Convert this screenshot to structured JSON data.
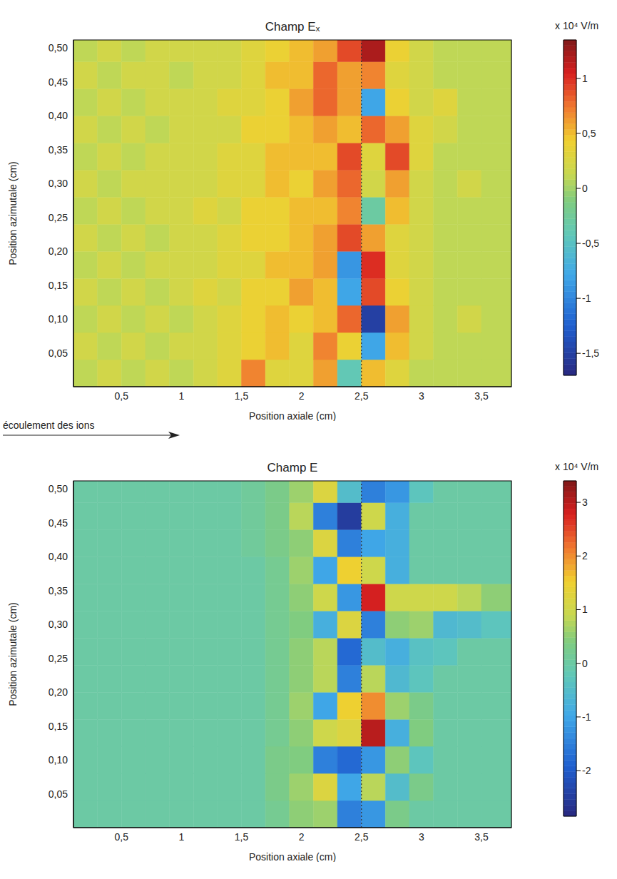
{
  "chart_data": [
    {
      "type": "heatmap",
      "title": "Champ Eₓ",
      "x_label": "Position axiale (cm)",
      "y_label": "Position azimutale (cm)",
      "xlim": [
        0.1,
        3.75
      ],
      "xticks": [
        {
          "value": 0.5,
          "label": "0,5"
        },
        1,
        {
          "value": 1.5,
          "label": "1,5"
        },
        2,
        {
          "value": 2.5,
          "label": "2,5"
        },
        3,
        {
          "value": 3.5,
          "label": "3,5"
        }
      ],
      "ylim": [
        0,
        0.512
      ],
      "yticks": [
        {
          "value": 0.05,
          "label": "0,05"
        },
        {
          "value": 0.1,
          "label": "0,10"
        },
        {
          "value": 0.15,
          "label": "0,15"
        },
        {
          "value": 0.2,
          "label": "0,20"
        },
        {
          "value": 0.25,
          "label": "0,25"
        },
        {
          "value": 0.3,
          "label": "0,30"
        },
        {
          "value": 0.35,
          "label": "0,35"
        },
        {
          "value": 0.4,
          "label": "0,40"
        },
        {
          "value": 0.45,
          "label": "0,45"
        },
        {
          "value": 0.5,
          "label": "0,50"
        }
      ],
      "x_edges": [
        0.1,
        0.3,
        0.5,
        0.7,
        0.9,
        1.1,
        1.3,
        1.5,
        1.7,
        1.9,
        2.1,
        2.3,
        2.5,
        2.7,
        2.9,
        3.1,
        3.3,
        3.5,
        3.75
      ],
      "y_edges": [
        0,
        0.04,
        0.08,
        0.12,
        0.16,
        0.2,
        0.24,
        0.28,
        0.32,
        0.36,
        0.4,
        0.44,
        0.48,
        0.512
      ],
      "cells": [
        [
          0.1,
          0.2,
          0.1,
          0.2,
          0.1,
          0.2,
          0.3,
          0.7,
          0.3,
          0.3,
          0.6,
          -0.4,
          0.5,
          0.3,
          0.1,
          0.1,
          0.1,
          0.1
        ],
        [
          0.2,
          0.1,
          0.2,
          0.1,
          0.2,
          0.2,
          0.3,
          0.4,
          0.5,
          0.3,
          0.7,
          0.4,
          -0.8,
          0.5,
          0.2,
          0.1,
          0.1,
          0.1
        ],
        [
          0.1,
          0.2,
          0.1,
          0.2,
          0.1,
          0.2,
          0.3,
          0.4,
          0.5,
          0.4,
          0.5,
          0.8,
          -1.5,
          0.6,
          0.2,
          0.1,
          0.2,
          0.1
        ],
        [
          0.2,
          0.1,
          0.2,
          0.1,
          0.2,
          0.3,
          0.2,
          0.4,
          0.4,
          0.6,
          0.5,
          -0.8,
          0.9,
          0.4,
          0.2,
          0.1,
          0.1,
          0.1
        ],
        [
          0.1,
          0.2,
          0.1,
          0.2,
          0.2,
          0.2,
          0.3,
          0.3,
          0.5,
          0.5,
          0.6,
          -0.9,
          1.0,
          0.3,
          0.2,
          0.1,
          0.1,
          0.1
        ],
        [
          0.2,
          0.1,
          0.2,
          0.1,
          0.2,
          0.2,
          0.3,
          0.4,
          0.4,
          0.5,
          0.6,
          0.9,
          0.6,
          0.3,
          0.2,
          0.1,
          0.1,
          0.1
        ],
        [
          0.1,
          0.2,
          0.1,
          0.2,
          0.2,
          0.3,
          0.2,
          0.4,
          0.4,
          0.5,
          0.5,
          0.7,
          -0.3,
          0.5,
          0.2,
          0.1,
          0.1,
          0.1
        ],
        [
          0.2,
          0.1,
          0.2,
          0.2,
          0.2,
          0.2,
          0.3,
          0.3,
          0.5,
          0.4,
          0.6,
          0.8,
          0.2,
          0.6,
          0.2,
          0.1,
          0.2,
          0.1
        ],
        [
          0.1,
          0.2,
          0.1,
          0.2,
          0.2,
          0.2,
          0.3,
          0.3,
          0.5,
          0.5,
          0.5,
          0.9,
          0.3,
          0.9,
          0.3,
          0.1,
          0.1,
          0.1
        ],
        [
          0.2,
          0.1,
          0.2,
          0.1,
          0.2,
          0.2,
          0.2,
          0.4,
          0.4,
          0.5,
          0.6,
          0.5,
          0.8,
          0.6,
          0.3,
          0.2,
          0.1,
          0.1
        ],
        [
          0.1,
          0.2,
          0.1,
          0.2,
          0.2,
          0.2,
          0.3,
          0.3,
          0.4,
          0.6,
          0.8,
          0.6,
          -0.8,
          0.4,
          0.2,
          0.3,
          0.1,
          0.1
        ],
        [
          0.2,
          0.1,
          0.2,
          0.2,
          0.1,
          0.2,
          0.2,
          0.3,
          0.5,
          0.5,
          0.8,
          0.6,
          0.7,
          0.3,
          0.2,
          0.1,
          0.1,
          0.1
        ],
        [
          0.1,
          0.2,
          0.1,
          0.2,
          0.2,
          0.2,
          0.2,
          0.3,
          0.4,
          0.5,
          0.6,
          0.9,
          1.2,
          0.4,
          0.2,
          0.1,
          0.1,
          0.1
        ]
      ],
      "colorbar": {
        "label": "x 10⁴ V/m",
        "range": [
          -1.7,
          1.35
        ],
        "ticks": [
          1,
          {
            "value": 0.5,
            "label": "0,5"
          },
          0,
          {
            "value": -0.5,
            "label": "-0,5"
          },
          -1,
          {
            "value": -1.5,
            "label": "-1,5"
          }
        ]
      },
      "reference_lines": [
        {
          "x": 2.5,
          "line_style": "dotted"
        }
      ]
    },
    {
      "type": "heatmap",
      "title": "Champ E",
      "x_label": "Position axiale (cm)",
      "y_label": "Position azimutale (cm)",
      "xlim": [
        0.1,
        3.75
      ],
      "xticks": [
        {
          "value": 0.5,
          "label": "0,5"
        },
        1,
        {
          "value": 1.5,
          "label": "1,5"
        },
        2,
        {
          "value": 2.5,
          "label": "2,5"
        },
        3,
        {
          "value": 3.5,
          "label": "3,5"
        }
      ],
      "ylim": [
        0,
        0.512
      ],
      "yticks": [
        {
          "value": 0.05,
          "label": "0,05"
        },
        {
          "value": 0.1,
          "label": "0,10"
        },
        {
          "value": 0.15,
          "label": "0,15"
        },
        {
          "value": 0.2,
          "label": "0,20"
        },
        {
          "value": 0.25,
          "label": "0,25"
        },
        {
          "value": 0.3,
          "label": "0,30"
        },
        {
          "value": 0.35,
          "label": "0,35"
        },
        {
          "value": 0.4,
          "label": "0,40"
        },
        {
          "value": 0.45,
          "label": "0,45"
        },
        {
          "value": 0.5,
          "label": "0,50"
        }
      ],
      "x_edges": [
        0.1,
        0.3,
        0.5,
        0.7,
        0.9,
        1.1,
        1.3,
        1.5,
        1.7,
        1.9,
        2.1,
        2.3,
        2.5,
        2.7,
        2.9,
        3.1,
        3.3,
        3.5,
        3.75
      ],
      "y_edges": [
        0,
        0.04,
        0.08,
        0.12,
        0.16,
        0.2,
        0.24,
        0.28,
        0.32,
        0.36,
        0.4,
        0.44,
        0.48,
        0.512
      ],
      "cells": [
        [
          0,
          0,
          0,
          0,
          0,
          0,
          0,
          0,
          0.2,
          0.5,
          0.6,
          -1.5,
          -1.2,
          0.3,
          0,
          0,
          0,
          0
        ],
        [
          0,
          0,
          0,
          0,
          0,
          0,
          0,
          0,
          0.3,
          0.6,
          1.2,
          -1.0,
          0.8,
          -0.5,
          0.3,
          0,
          0,
          0
        ],
        [
          0,
          0,
          0,
          0,
          0,
          0,
          0,
          0,
          0.3,
          0.4,
          -1.5,
          -1.8,
          -1.2,
          0.5,
          -0.3,
          0,
          0,
          0
        ],
        [
          0,
          0,
          0,
          0,
          0,
          0,
          0,
          0,
          0.2,
          0.5,
          1.0,
          1.2,
          3.0,
          -0.8,
          0.4,
          0,
          0,
          0
        ],
        [
          0,
          0,
          0,
          0,
          0,
          0,
          0,
          0,
          0.2,
          0.6,
          -1.0,
          1.5,
          2.0,
          0.6,
          0.3,
          0,
          0,
          0
        ],
        [
          0,
          0,
          0,
          0,
          0,
          0,
          0,
          0,
          0.2,
          0.5,
          0.8,
          -1.5,
          0.8,
          -0.6,
          -0.3,
          0,
          0,
          0
        ],
        [
          0,
          0,
          0,
          0,
          0,
          0,
          0,
          0,
          0.2,
          0.5,
          0.8,
          -1.8,
          -0.5,
          -0.8,
          -0.4,
          -0.3,
          0,
          0
        ],
        [
          0,
          0,
          0,
          0,
          0,
          0,
          0,
          0,
          0.2,
          0.4,
          -0.8,
          1.2,
          -1.5,
          0.5,
          0.6,
          -0.6,
          -0.5,
          -0.3
        ],
        [
          0,
          0,
          0,
          0,
          0,
          0,
          0,
          0,
          0.2,
          0.5,
          1.0,
          -1.2,
          2.8,
          1.0,
          1.0,
          1.0,
          0.8,
          0.5
        ],
        [
          0,
          0,
          0,
          0,
          0,
          0,
          0,
          0,
          0.2,
          0.6,
          -1.0,
          1.5,
          1.0,
          -0.8,
          0,
          0,
          0,
          0
        ],
        [
          0,
          0,
          0,
          0,
          0,
          0,
          0,
          0.1,
          0.3,
          0.5,
          1.2,
          -1.5,
          -1.0,
          -0.8,
          0,
          0,
          0,
          0
        ],
        [
          0,
          0,
          0,
          0,
          0,
          0,
          0,
          0.1,
          0.3,
          0.8,
          -1.5,
          -2.5,
          1.0,
          -0.8,
          0,
          0,
          0,
          0
        ],
        [
          0,
          0,
          0,
          0,
          0,
          0,
          0,
          0.1,
          0.3,
          0.6,
          1.2,
          -0.5,
          -1.5,
          -1.2,
          -0.3,
          0,
          0,
          0
        ]
      ],
      "colorbar": {
        "label": "x 10⁴ V/m",
        "range": [
          -2.85,
          3.4
        ],
        "ticks": [
          3,
          2,
          1,
          0,
          -1,
          -2
        ]
      },
      "reference_lines": [
        {
          "x": 2.5,
          "line_style": "dotted"
        }
      ],
      "annotation": {
        "text": "écoulement des ions"
      }
    }
  ]
}
